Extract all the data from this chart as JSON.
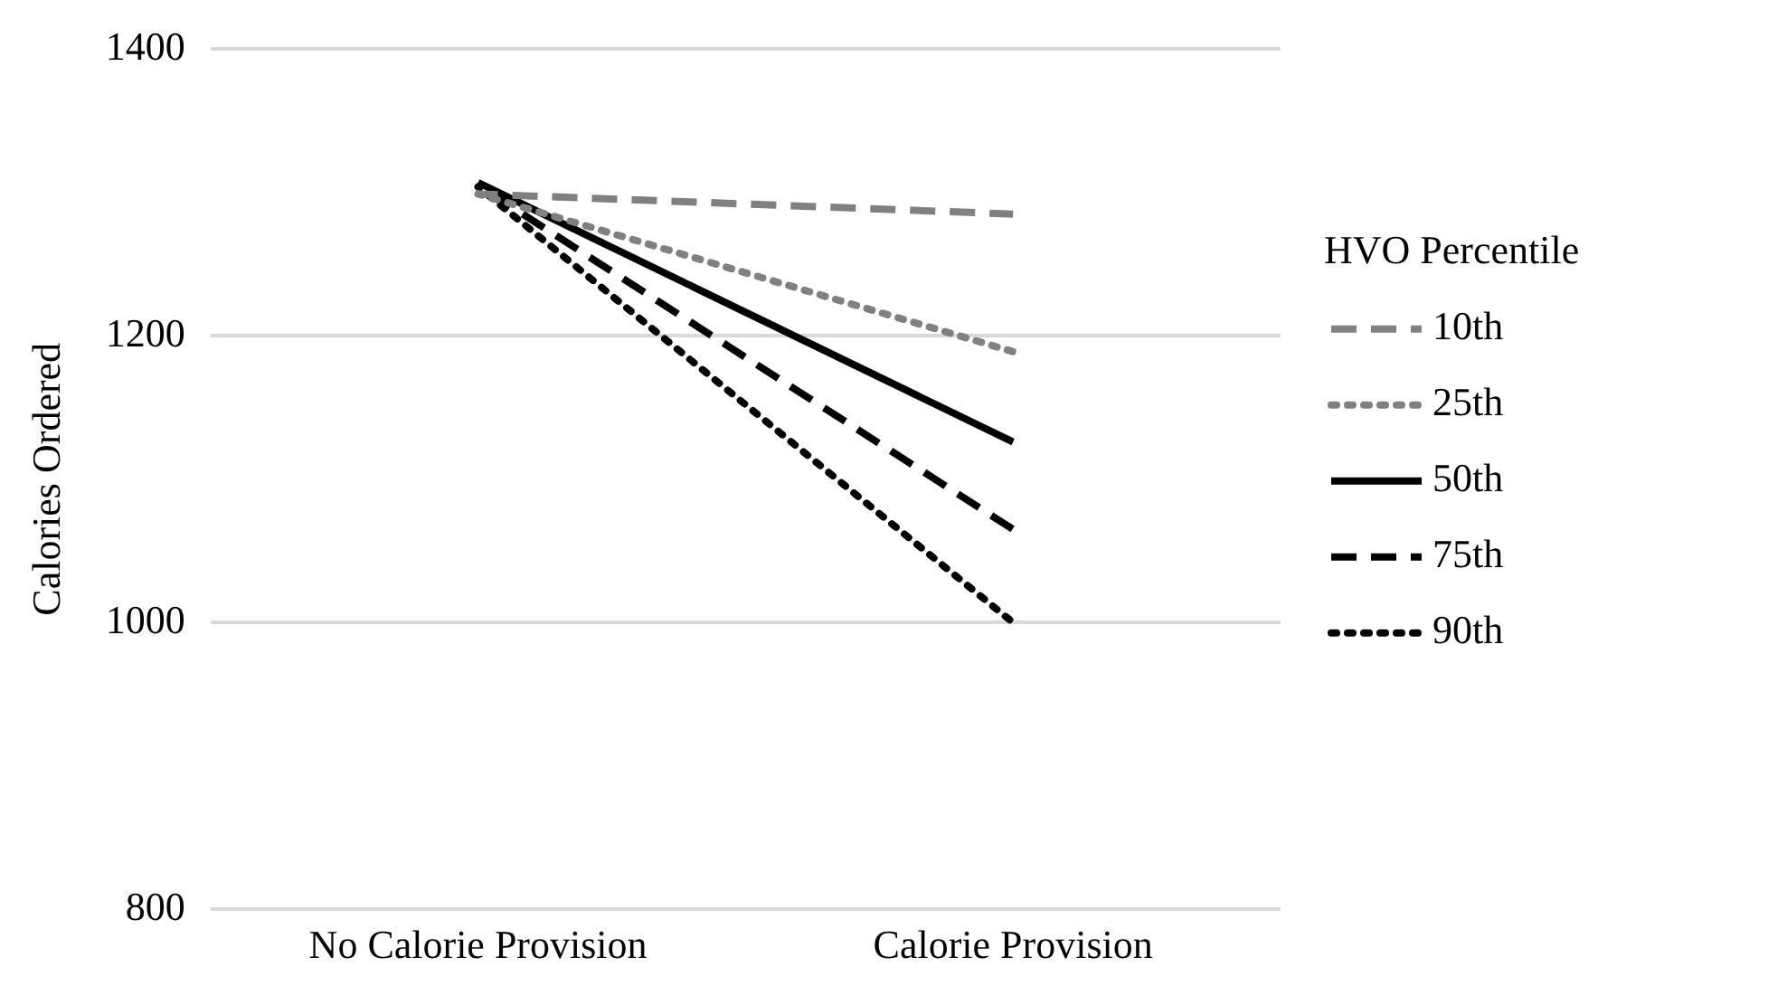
{
  "chart_data": {
    "type": "line",
    "ylabel": "Calories Ordered",
    "legend_title": "HVO Percentile",
    "legend": "right",
    "grid": "y",
    "marker": "none",
    "categories": [
      "No Calorie Provision",
      "Calorie Provision"
    ],
    "ylim": [
      800,
      1400
    ],
    "yticks": [
      800,
      1000,
      1200,
      1400
    ],
    "series": [
      {
        "name": "10th",
        "color": "#808080",
        "line_style": "dashed",
        "values": [
          1299,
          1285
        ]
      },
      {
        "name": "25th",
        "color": "#808080",
        "line_style": "dotted",
        "values": [
          1299,
          1189
        ]
      },
      {
        "name": "50th",
        "color": "#000000",
        "line_style": "solid",
        "values": [
          1307,
          1126
        ]
      },
      {
        "name": "75th",
        "color": "#000000",
        "line_style": "dashed",
        "values": [
          1305,
          1065
        ]
      },
      {
        "name": "90th",
        "color": "#000000",
        "line_style": "dotted",
        "values": [
          1304,
          1000
        ]
      }
    ]
  }
}
